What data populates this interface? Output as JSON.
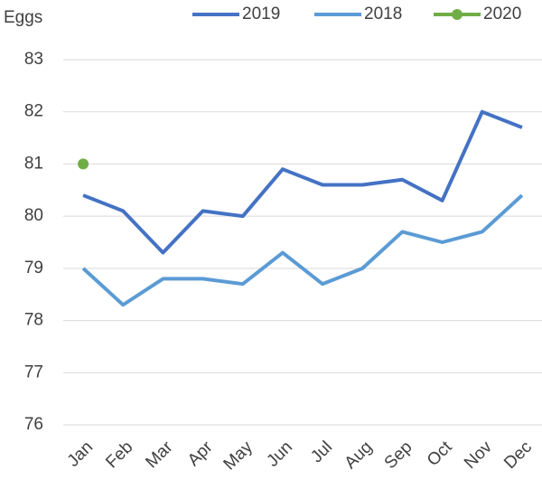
{
  "chart_data": {
    "type": "line",
    "y_label": "Eggs",
    "categories": [
      "Jan",
      "Feb",
      "Mar",
      "Apr",
      "May",
      "Jun",
      "Jul",
      "Aug",
      "Sep",
      "Oct",
      "Nov",
      "Dec"
    ],
    "series": [
      {
        "name": "2019",
        "color": "#4472c4",
        "values": [
          80.4,
          80.1,
          79.3,
          80.1,
          80.0,
          80.9,
          80.6,
          80.6,
          80.7,
          80.3,
          82.0,
          81.7
        ]
      },
      {
        "name": "2018",
        "color": "#5b9bd5",
        "values": [
          79.0,
          78.3,
          78.8,
          78.8,
          78.7,
          79.3,
          78.7,
          79.0,
          79.7,
          79.5,
          79.7,
          80.4
        ]
      },
      {
        "name": "2020",
        "color": "#70ad47",
        "marker": true,
        "values": [
          81.0,
          null,
          null,
          null,
          null,
          null,
          null,
          null,
          null,
          null,
          null,
          null
        ]
      }
    ],
    "ylim": [
      76,
      83
    ],
    "yticks": [
      76,
      77,
      78,
      79,
      80,
      81,
      82,
      83
    ],
    "grid": true,
    "legend": "top"
  }
}
